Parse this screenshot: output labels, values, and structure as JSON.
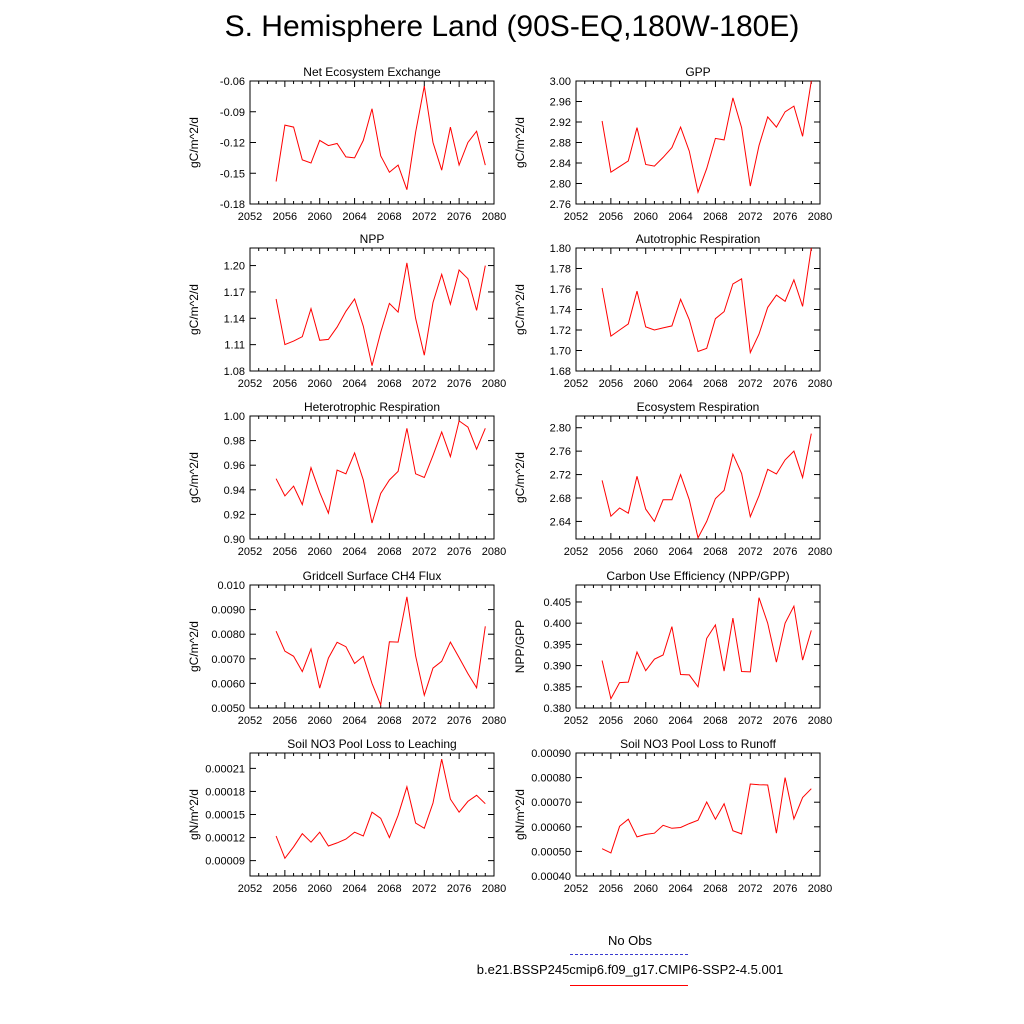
{
  "title": "S. Hemisphere Land (90S-EQ,180W-180E)",
  "legend": {
    "obs_label": "No Obs",
    "case_label": "b.e21.BSSP245cmip6.f09_g17.CMIP6-SSP2-4.5.001",
    "obs_color": "#3a3ad0",
    "case_color": "#ff0000"
  },
  "chart_data": [
    {
      "type": "line",
      "title": "Net Ecosystem Exchange",
      "ylabel": "gC/m^2/d",
      "xlim": [
        2052,
        2080
      ],
      "ylim": [
        -0.18,
        -0.06
      ],
      "xticks": [
        "2052",
        "2056",
        "2060",
        "2064",
        "2068",
        "2072",
        "2076",
        "2080"
      ],
      "yticks": [
        "-0.18",
        "-0.15",
        "-0.12",
        "-0.09",
        "-0.06"
      ],
      "series": [
        {
          "x": [
            2055,
            2056,
            2057,
            2058,
            2059,
            2060,
            2061,
            2062,
            2063,
            2064,
            2065,
            2066,
            2067,
            2068,
            2069,
            2070,
            2071,
            2072,
            2073,
            2074,
            2075,
            2076,
            2077,
            2078,
            2079
          ],
          "y": [
            -0.158,
            -0.103,
            -0.105,
            -0.137,
            -0.14,
            -0.118,
            -0.123,
            -0.121,
            -0.134,
            -0.135,
            -0.118,
            -0.087,
            -0.133,
            -0.149,
            -0.142,
            -0.166,
            -0.11,
            -0.065,
            -0.12,
            -0.147,
            -0.105,
            -0.142,
            -0.12,
            -0.109,
            -0.142
          ]
        }
      ]
    },
    {
      "type": "line",
      "title": "GPP",
      "ylabel": "gC/m^2/d",
      "xlim": [
        2052,
        2080
      ],
      "ylim": [
        2.76,
        3.0
      ],
      "xticks": [
        "2052",
        "2056",
        "2060",
        "2064",
        "2068",
        "2072",
        "2076",
        "2080"
      ],
      "yticks": [
        "2.76",
        "2.80",
        "2.84",
        "2.88",
        "2.92",
        "2.96",
        "3.00"
      ],
      "series": [
        {
          "x": [
            2055,
            2056,
            2057,
            2058,
            2059,
            2060,
            2061,
            2062,
            2063,
            2064,
            2065,
            2066,
            2067,
            2068,
            2069,
            2070,
            2071,
            2072,
            2073,
            2074,
            2075,
            2076,
            2077,
            2078,
            2079
          ],
          "y": [
            2.922,
            2.822,
            2.833,
            2.844,
            2.909,
            2.837,
            2.834,
            2.851,
            2.87,
            2.91,
            2.863,
            2.783,
            2.829,
            2.888,
            2.885,
            2.967,
            2.909,
            2.795,
            2.874,
            2.93,
            2.91,
            2.94,
            2.951,
            2.892,
            3.0
          ]
        }
      ]
    },
    {
      "type": "line",
      "title": "NPP",
      "ylabel": "gC/m^2/d",
      "xlim": [
        2052,
        2080
      ],
      "ylim": [
        1.08,
        1.22
      ],
      "xticks": [
        "2052",
        "2056",
        "2060",
        "2064",
        "2068",
        "2072",
        "2076",
        "2080"
      ],
      "yticks": [
        "1.08",
        "1.11",
        "1.14",
        "1.17",
        "1.20"
      ],
      "series": [
        {
          "x": [
            2055,
            2056,
            2057,
            2058,
            2059,
            2060,
            2061,
            2062,
            2063,
            2064,
            2065,
            2066,
            2067,
            2068,
            2069,
            2070,
            2071,
            2072,
            2073,
            2074,
            2075,
            2076,
            2077,
            2078,
            2079
          ],
          "y": [
            1.162,
            1.11,
            1.114,
            1.119,
            1.151,
            1.115,
            1.116,
            1.13,
            1.148,
            1.162,
            1.131,
            1.086,
            1.124,
            1.157,
            1.147,
            1.203,
            1.14,
            1.098,
            1.158,
            1.19,
            1.156,
            1.195,
            1.185,
            1.149,
            1.2
          ]
        }
      ]
    },
    {
      "type": "line",
      "title": "Autotrophic Respiration",
      "ylabel": "gC/m^2/d",
      "xlim": [
        2052,
        2080
      ],
      "ylim": [
        1.68,
        1.8
      ],
      "xticks": [
        "2052",
        "2056",
        "2060",
        "2064",
        "2068",
        "2072",
        "2076",
        "2080"
      ],
      "yticks": [
        "1.68",
        "1.70",
        "1.72",
        "1.74",
        "1.76",
        "1.78",
        "1.80"
      ],
      "series": [
        {
          "x": [
            2055,
            2056,
            2057,
            2058,
            2059,
            2060,
            2061,
            2062,
            2063,
            2064,
            2065,
            2066,
            2067,
            2068,
            2069,
            2070,
            2071,
            2072,
            2073,
            2074,
            2075,
            2076,
            2077,
            2078,
            2079
          ],
          "y": [
            1.761,
            1.714,
            1.72,
            1.726,
            1.758,
            1.723,
            1.72,
            1.722,
            1.724,
            1.75,
            1.73,
            1.699,
            1.702,
            1.731,
            1.738,
            1.765,
            1.77,
            1.698,
            1.716,
            1.742,
            1.754,
            1.748,
            1.769,
            1.743,
            1.8
          ]
        }
      ]
    },
    {
      "type": "line",
      "title": "Heterotrophic Respiration",
      "ylabel": "gC/m^2/d",
      "xlim": [
        2052,
        2080
      ],
      "ylim": [
        0.9,
        1.0
      ],
      "xticks": [
        "2052",
        "2056",
        "2060",
        "2064",
        "2068",
        "2072",
        "2076",
        "2080"
      ],
      "yticks": [
        "0.90",
        "0.92",
        "0.94",
        "0.96",
        "0.98",
        "1.00"
      ],
      "series": [
        {
          "x": [
            2055,
            2056,
            2057,
            2058,
            2059,
            2060,
            2061,
            2062,
            2063,
            2064,
            2065,
            2066,
            2067,
            2068,
            2069,
            2070,
            2071,
            2072,
            2073,
            2074,
            2075,
            2076,
            2077,
            2078,
            2079
          ],
          "y": [
            0.949,
            0.935,
            0.943,
            0.928,
            0.958,
            0.938,
            0.921,
            0.956,
            0.953,
            0.97,
            0.948,
            0.913,
            0.937,
            0.948,
            0.955,
            0.99,
            0.953,
            0.95,
            0.968,
            0.987,
            0.967,
            0.996,
            0.991,
            0.973,
            0.99
          ]
        }
      ]
    },
    {
      "type": "line",
      "title": "Ecosystem Respiration",
      "ylabel": "gC/m^2/d",
      "xlim": [
        2052,
        2080
      ],
      "ylim": [
        2.61,
        2.82
      ],
      "xticks": [
        "2052",
        "2056",
        "2060",
        "2064",
        "2068",
        "2072",
        "2076",
        "2080"
      ],
      "yticks": [
        "2.64",
        "2.68",
        "2.72",
        "2.76",
        "2.80"
      ],
      "series": [
        {
          "x": [
            2055,
            2056,
            2057,
            2058,
            2059,
            2060,
            2061,
            2062,
            2063,
            2064,
            2065,
            2066,
            2067,
            2068,
            2069,
            2070,
            2071,
            2072,
            2073,
            2074,
            2075,
            2076,
            2077,
            2078,
            2079
          ],
          "y": [
            2.71,
            2.649,
            2.663,
            2.654,
            2.717,
            2.661,
            2.64,
            2.677,
            2.677,
            2.72,
            2.677,
            2.612,
            2.64,
            2.679,
            2.693,
            2.755,
            2.722,
            2.648,
            2.684,
            2.729,
            2.721,
            2.745,
            2.76,
            2.715,
            2.79
          ]
        }
      ]
    },
    {
      "type": "line",
      "title": "Gridcell Surface CH4 Flux",
      "ylabel": "gC/m^2/d",
      "xlim": [
        2052,
        2080
      ],
      "ylim": [
        0.005,
        0.01
      ],
      "xticks": [
        "2052",
        "2056",
        "2060",
        "2064",
        "2068",
        "2072",
        "2076",
        "2080"
      ],
      "yticks": [
        "0.0050",
        "0.0060",
        "0.0070",
        "0.0080",
        "0.0090",
        "0.010"
      ],
      "series": [
        {
          "x": [
            2055,
            2056,
            2057,
            2058,
            2059,
            2060,
            2061,
            2062,
            2063,
            2064,
            2065,
            2066,
            2067,
            2068,
            2069,
            2070,
            2071,
            2072,
            2073,
            2074,
            2075,
            2076,
            2077,
            2078,
            2079
          ],
          "y": [
            0.00812,
            0.00731,
            0.0071,
            0.00648,
            0.0074,
            0.00581,
            0.00703,
            0.00767,
            0.00749,
            0.00681,
            0.0071,
            0.006,
            0.00513,
            0.00769,
            0.00768,
            0.00952,
            0.00712,
            0.00552,
            0.00662,
            0.0069,
            0.00768,
            0.00705,
            0.0064,
            0.00582,
            0.00832
          ]
        }
      ]
    },
    {
      "type": "line",
      "title": "Carbon Use Efficiency (NPP/GPP)",
      "ylabel": "NPP/GPP",
      "xlim": [
        2052,
        2080
      ],
      "ylim": [
        0.38,
        0.409
      ],
      "xticks": [
        "2052",
        "2056",
        "2060",
        "2064",
        "2068",
        "2072",
        "2076",
        "2080"
      ],
      "yticks": [
        "0.380",
        "0.385",
        "0.390",
        "0.395",
        "0.400",
        "0.405"
      ],
      "series": [
        {
          "x": [
            2055,
            2056,
            2057,
            2058,
            2059,
            2060,
            2061,
            2062,
            2063,
            2064,
            2065,
            2066,
            2067,
            2068,
            2069,
            2070,
            2071,
            2072,
            2073,
            2074,
            2075,
            2076,
            2077,
            2078,
            2079
          ],
          "y": [
            0.3912,
            0.3822,
            0.386,
            0.3861,
            0.3932,
            0.3888,
            0.3915,
            0.3925,
            0.3992,
            0.3879,
            0.3878,
            0.385,
            0.3964,
            0.3996,
            0.3887,
            0.4012,
            0.3886,
            0.3885,
            0.406,
            0.4,
            0.3908,
            0.4,
            0.404,
            0.3913,
            0.3983
          ]
        }
      ]
    },
    {
      "type": "line",
      "title": "Soil NO3 Pool Loss to Leaching",
      "ylabel": "gN/m^2/d",
      "xlim": [
        2052,
        2080
      ],
      "ylim": [
        7e-05,
        0.00023
      ],
      "xticks": [
        "2052",
        "2056",
        "2060",
        "2064",
        "2068",
        "2072",
        "2076",
        "2080"
      ],
      "yticks": [
        "0.00009",
        "0.00012",
        "0.00015",
        "0.00018",
        "0.00021"
      ],
      "series": [
        {
          "x": [
            2055,
            2056,
            2057,
            2058,
            2059,
            2060,
            2061,
            2062,
            2063,
            2064,
            2065,
            2066,
            2067,
            2068,
            2069,
            2070,
            2071,
            2072,
            2073,
            2074,
            2075,
            2076,
            2077,
            2078,
            2079
          ],
          "y": [
            0.000122,
            9.3e-05,
            0.000108,
            0.000125,
            0.000114,
            0.000127,
            0.000109,
            0.000113,
            0.000118,
            0.000127,
            0.000122,
            0.000153,
            0.000145,
            0.00012,
            0.000149,
            0.000186,
            0.000139,
            0.000132,
            0.000165,
            0.000222,
            0.00017,
            0.000153,
            0.000167,
            0.000175,
            0.000164
          ]
        }
      ]
    },
    {
      "type": "line",
      "title": "Soil NO3 Pool Loss to Runoff",
      "ylabel": "gN/m^2/d",
      "xlim": [
        2052,
        2080
      ],
      "ylim": [
        0.0004,
        0.0009
      ],
      "xticks": [
        "2052",
        "2056",
        "2060",
        "2064",
        "2068",
        "2072",
        "2076",
        "2080"
      ],
      "yticks": [
        "0.00040",
        "0.00050",
        "0.00060",
        "0.00070",
        "0.00080",
        "0.00090"
      ],
      "series": [
        {
          "x": [
            2055,
            2056,
            2057,
            2058,
            2059,
            2060,
            2061,
            2062,
            2063,
            2064,
            2065,
            2066,
            2067,
            2068,
            2069,
            2070,
            2071,
            2072,
            2073,
            2074,
            2075,
            2076,
            2077,
            2078,
            2079
          ],
          "y": [
            0.000511,
            0.000494,
            0.000602,
            0.000631,
            0.000559,
            0.000569,
            0.000574,
            0.000606,
            0.000594,
            0.000597,
            0.000613,
            0.000627,
            0.000701,
            0.000631,
            0.000694,
            0.000584,
            0.000571,
            0.000774,
            0.000771,
            0.00077,
            0.000574,
            0.0008,
            0.000632,
            0.000719,
            0.000755
          ]
        }
      ]
    }
  ]
}
